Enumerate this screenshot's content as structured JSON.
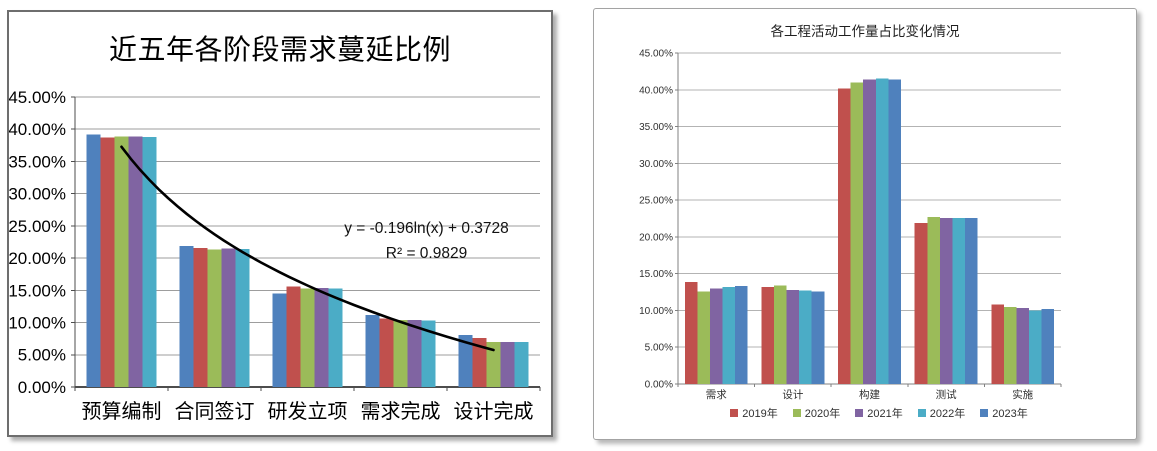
{
  "chart_data": [
    {
      "type": "bar",
      "title": "近五年各阶段需求蔓延比例",
      "categories": [
        "预算编制",
        "合同签订",
        "研发立项",
        "需求完成",
        "设计完成"
      ],
      "series": [
        {
          "name": "",
          "color": "#4F81BD",
          "values": [
            39.2,
            21.9,
            14.5,
            11.2,
            8.1
          ]
        },
        {
          "name": "",
          "color": "#C0504D",
          "values": [
            38.7,
            21.6,
            15.6,
            10.6,
            7.6
          ]
        },
        {
          "name": "",
          "color": "#9BBB59",
          "values": [
            38.9,
            21.3,
            15.3,
            10.4,
            7.0
          ]
        },
        {
          "name": "",
          "color": "#8064A2",
          "values": [
            38.9,
            21.5,
            15.4,
            10.4,
            7.0
          ]
        },
        {
          "name": "",
          "color": "#4BACC6",
          "values": [
            38.8,
            21.4,
            15.3,
            10.3,
            7.0
          ]
        }
      ],
      "ylim": [
        0,
        45
      ],
      "ytick_labels": [
        "0.00%",
        "5.00%",
        "10.00%",
        "15.00%",
        "20.00%",
        "25.00%",
        "30.00%",
        "35.00%",
        "40.00%",
        "45.00%"
      ],
      "grid": "on",
      "legend_position": "none",
      "trendline": {
        "equation": "y = -0.196ln(x) + 0.3728",
        "r_squared": "R² = 0.9829",
        "a": -0.196,
        "b": 0.3728,
        "color": "#000000"
      }
    },
    {
      "type": "bar",
      "title": "各工程活动工作量占比变化情况",
      "categories": [
        "需求",
        "设计",
        "构建",
        "测试",
        "实施"
      ],
      "series": [
        {
          "name": "2019年",
          "color": "#C0504D",
          "values": [
            13.9,
            13.2,
            40.2,
            21.9,
            10.8
          ]
        },
        {
          "name": "2020年",
          "color": "#9BBB59",
          "values": [
            12.6,
            13.4,
            41.0,
            22.7,
            10.5
          ]
        },
        {
          "name": "2021年",
          "color": "#8064A2",
          "values": [
            13.0,
            12.8,
            41.4,
            22.6,
            10.3
          ]
        },
        {
          "name": "2022年",
          "color": "#4BACC6",
          "values": [
            13.2,
            12.7,
            41.5,
            22.6,
            10.0
          ]
        },
        {
          "name": "2023年",
          "color": "#4F81BD",
          "values": [
            13.3,
            12.6,
            41.4,
            22.6,
            10.2
          ]
        }
      ],
      "ylim": [
        0,
        45
      ],
      "ytick_labels": [
        "0.00%",
        "5.00%",
        "10.00%",
        "15.00%",
        "20.00%",
        "25.00%",
        "30.00%",
        "35.00%",
        "40.00%",
        "45.00%"
      ],
      "grid": "on",
      "legend_position": "bottom"
    }
  ]
}
